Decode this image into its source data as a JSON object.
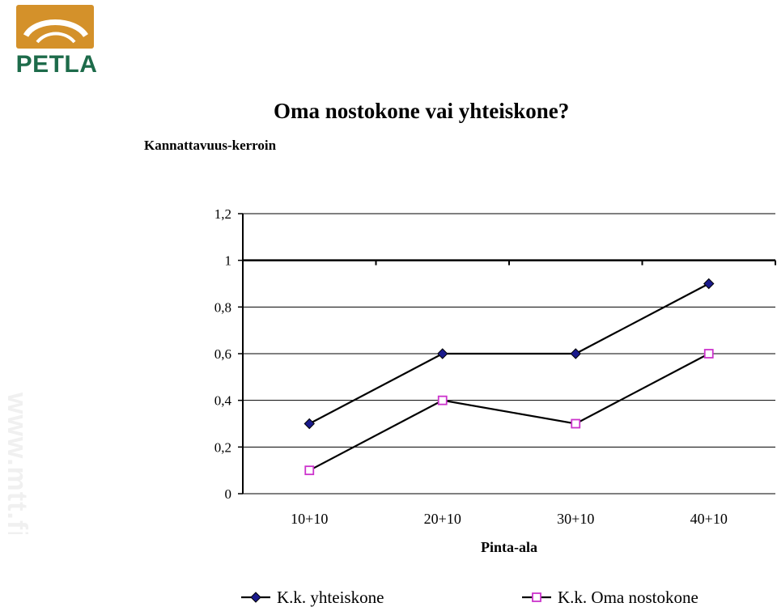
{
  "logo": {
    "name": "PETLA",
    "brand_gold": "#d4912a",
    "brand_green": "#1d6b4a"
  },
  "watermark": {
    "text": "www.mtt.fi",
    "color": "#f0f0f0"
  },
  "chart_data": {
    "type": "line",
    "title": "Oma nostokone vai yhteiskone?",
    "ylabel": "Kannattavuus-kerroin",
    "xlabel": "Pinta-ala",
    "categories": [
      "10+10",
      "20+10",
      "30+10",
      "40+10"
    ],
    "ylim": [
      0,
      1.2
    ],
    "yticks": [
      0,
      0.2,
      0.4,
      0.6,
      0.8,
      1,
      1.2
    ],
    "ytick_labels": [
      "0",
      "0,2",
      "0,4",
      "0,6",
      "0,8",
      "1",
      "1,2"
    ],
    "grid": true,
    "legend_position": "bottom",
    "series": [
      {
        "name": "K.k. yhteiskone",
        "values": [
          0.3,
          0.6,
          0.6,
          0.9
        ],
        "marker": "diamond",
        "marker_color": "#1a1a8c",
        "line_color": "#000000"
      },
      {
        "name": "K.k. Oma nostokone",
        "values": [
          0.1,
          0.4,
          0.3,
          0.6
        ],
        "marker": "square",
        "marker_color": "#cc33cc",
        "line_color": "#000000"
      }
    ]
  }
}
